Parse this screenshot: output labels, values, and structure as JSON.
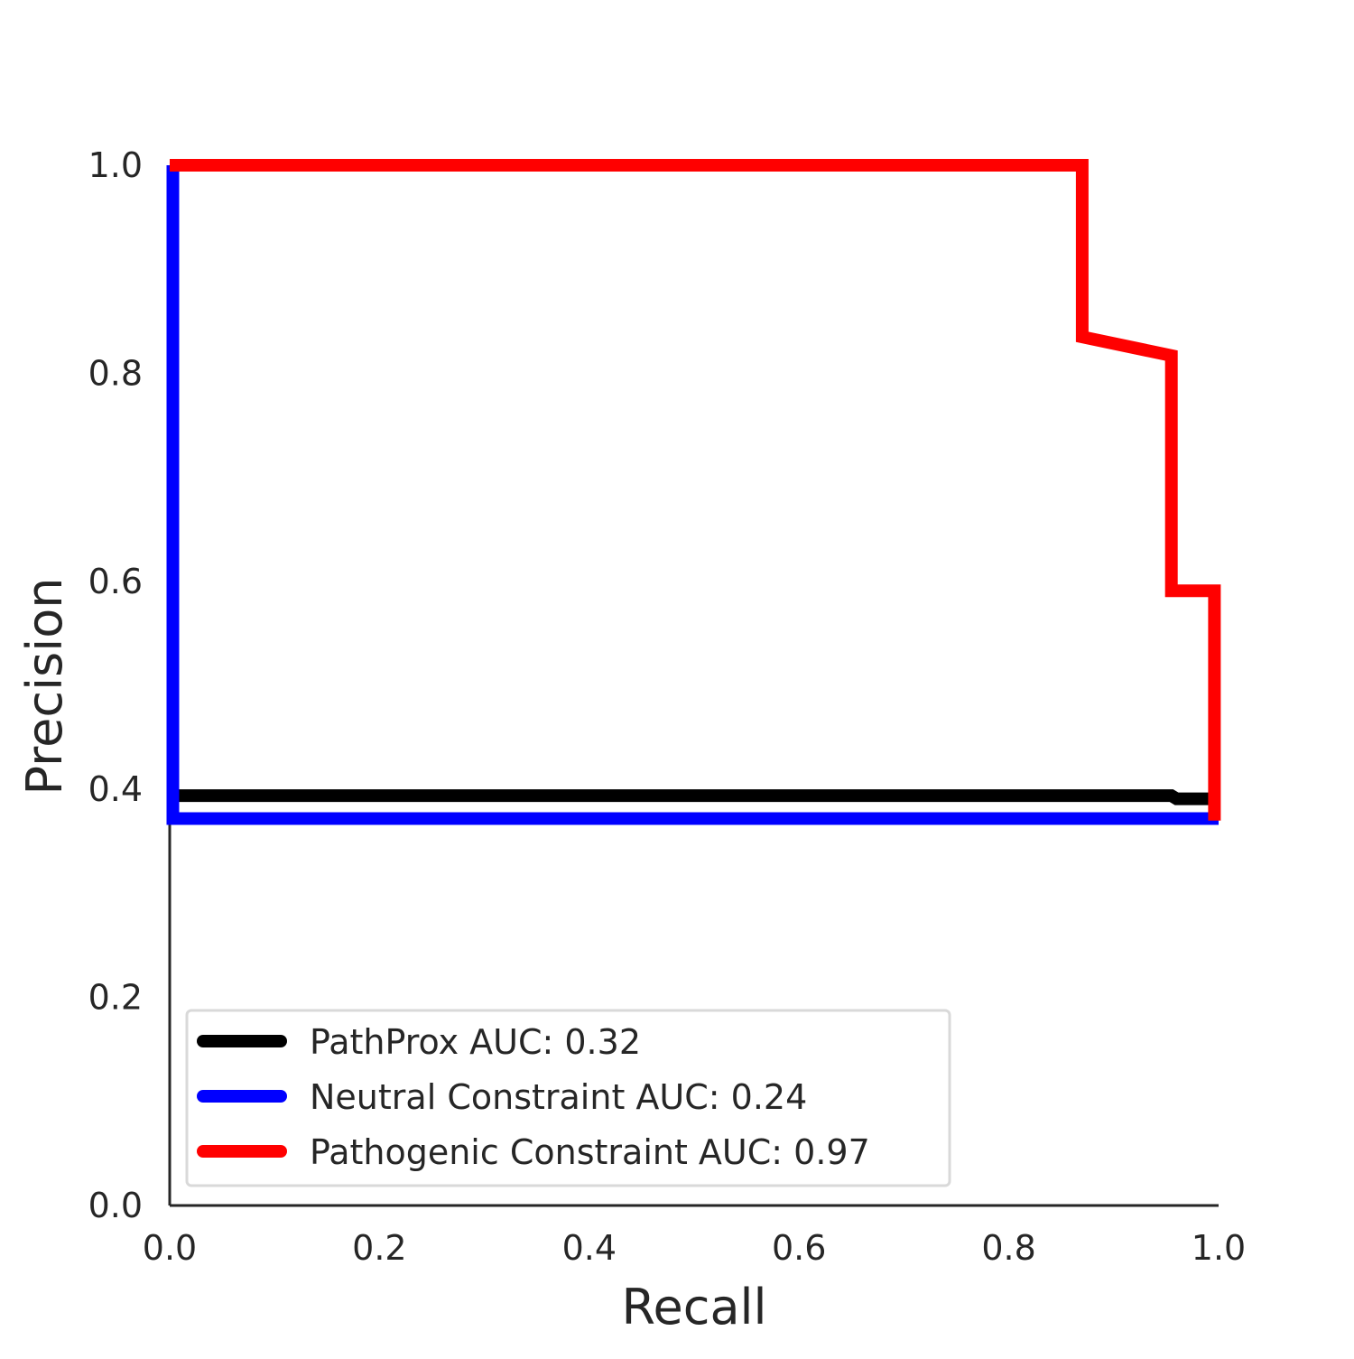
{
  "chart_data": {
    "type": "line",
    "title": "",
    "xlabel": "Recall",
    "ylabel": "Precision",
    "xlim": [
      0.0,
      1.0
    ],
    "ylim": [
      0.0,
      1.0
    ],
    "xticks": [
      "0.0",
      "0.2",
      "0.4",
      "0.6",
      "0.8",
      "1.0"
    ],
    "yticks": [
      "0.0",
      "0.2",
      "0.4",
      "0.6",
      "0.8",
      "1.0"
    ],
    "grid": false,
    "legend_position": "lower-left",
    "series": [
      {
        "name": "PathProx AUC:  0.32",
        "color": "#000000",
        "points": [
          [
            0.0,
            0.394
          ],
          [
            0.955,
            0.394
          ],
          [
            0.96,
            0.391
          ],
          [
            1.0,
            0.391
          ]
        ]
      },
      {
        "name": "Neutral Constraint AUC:  0.24",
        "color": "#0000ff",
        "points": [
          [
            0.003,
            1.0
          ],
          [
            0.003,
            0.372
          ],
          [
            1.0,
            0.372
          ]
        ]
      },
      {
        "name": "Pathogenic Constraint AUC:  0.97",
        "color": "#ff0000",
        "points": [
          [
            0.0,
            1.0
          ],
          [
            0.87,
            1.0
          ],
          [
            0.87,
            0.835
          ],
          [
            0.955,
            0.817
          ],
          [
            0.955,
            0.591
          ],
          [
            0.996,
            0.591
          ],
          [
            0.996,
            0.37
          ]
        ]
      }
    ]
  }
}
